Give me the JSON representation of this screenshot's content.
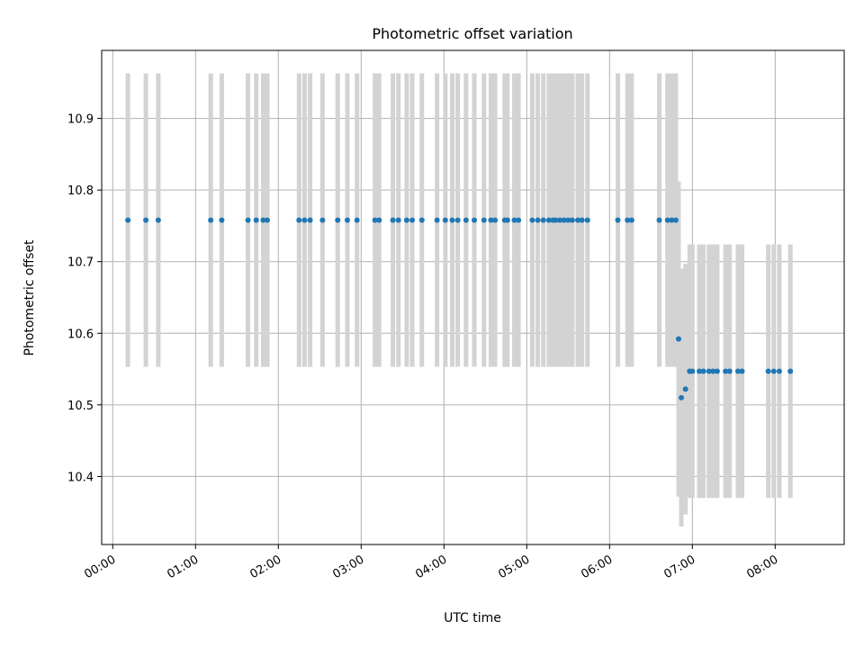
{
  "chart_data": {
    "type": "scatter",
    "title": "Photometric offset variation",
    "xlabel": "UTC time",
    "ylabel": "Photometric offset",
    "x_unit": "UTC hh:mm",
    "xlim": [
      "23:52",
      "08:50"
    ],
    "ylim": [
      10.305,
      10.995
    ],
    "grid": true,
    "x_ticks": [
      "00:00",
      "01:00",
      "02:00",
      "03:00",
      "04:00",
      "05:00",
      "06:00",
      "07:00",
      "08:00"
    ],
    "y_ticks": [
      10.4,
      10.5,
      10.6,
      10.7,
      10.8,
      10.9
    ],
    "colors": {
      "points": "#1f77b4",
      "errorbars": "#d3d3d3",
      "grid": "#b0b0b0",
      "axes": "#000000"
    },
    "series": [
      {
        "x": [
          "00:11",
          "00:24",
          "00:33",
          "01:11",
          "01:19",
          "01:38",
          "01:44",
          "01:49",
          "01:52",
          "02:15",
          "02:19",
          "02:23",
          "02:32",
          "02:43",
          "02:50",
          "02:57",
          "03:10",
          "03:13",
          "03:23",
          "03:27",
          "03:33",
          "03:37",
          "03:44",
          "03:55",
          "04:01",
          "04:06",
          "04:10",
          "04:16",
          "04:22",
          "04:29",
          "04:34",
          "04:37",
          "04:44",
          "04:46",
          "04:51",
          "04:54",
          "05:04",
          "05:08",
          "05:12",
          "05:16",
          "05:19",
          "05:21",
          "05:24",
          "05:27",
          "05:30",
          "05:33",
          "05:37",
          "05:40",
          "05:44",
          "06:06",
          "06:13",
          "06:16",
          "06:36",
          "06:42",
          "06:45",
          "06:48",
          "06:50",
          "06:52",
          "06:55",
          "06:58",
          "07:00",
          "07:05",
          "07:08",
          "07:12",
          "07:15",
          "07:18",
          "07:24",
          "07:27",
          "07:33",
          "07:36",
          "07:55",
          "07:59",
          "08:03",
          "08:11"
        ],
        "y": [
          10.758,
          10.758,
          10.758,
          10.758,
          10.758,
          10.758,
          10.758,
          10.758,
          10.758,
          10.758,
          10.758,
          10.758,
          10.758,
          10.758,
          10.758,
          10.758,
          10.758,
          10.758,
          10.758,
          10.758,
          10.758,
          10.758,
          10.758,
          10.758,
          10.758,
          10.758,
          10.758,
          10.758,
          10.758,
          10.758,
          10.758,
          10.758,
          10.758,
          10.758,
          10.758,
          10.758,
          10.758,
          10.758,
          10.758,
          10.758,
          10.758,
          10.758,
          10.758,
          10.758,
          10.758,
          10.758,
          10.758,
          10.758,
          10.758,
          10.758,
          10.758,
          10.758,
          10.758,
          10.758,
          10.758,
          10.758,
          10.592,
          10.51,
          10.522,
          10.547,
          10.547,
          10.547,
          10.547,
          10.547,
          10.547,
          10.547,
          10.547,
          10.547,
          10.547,
          10.547,
          10.547,
          10.547,
          10.547,
          10.547
        ],
        "yerr": [
          0.205,
          0.205,
          0.205,
          0.205,
          0.205,
          0.205,
          0.205,
          0.205,
          0.205,
          0.205,
          0.205,
          0.205,
          0.205,
          0.205,
          0.205,
          0.205,
          0.205,
          0.205,
          0.205,
          0.205,
          0.205,
          0.205,
          0.205,
          0.205,
          0.205,
          0.205,
          0.205,
          0.205,
          0.205,
          0.205,
          0.205,
          0.205,
          0.205,
          0.205,
          0.205,
          0.205,
          0.205,
          0.205,
          0.205,
          0.205,
          0.205,
          0.205,
          0.205,
          0.205,
          0.205,
          0.205,
          0.205,
          0.205,
          0.205,
          0.205,
          0.205,
          0.205,
          0.205,
          0.205,
          0.205,
          0.205,
          0.22,
          0.18,
          0.175,
          0.177,
          0.177,
          0.177,
          0.177,
          0.177,
          0.177,
          0.177,
          0.177,
          0.177,
          0.177,
          0.177,
          0.177,
          0.177,
          0.177,
          0.177
        ]
      }
    ]
  }
}
